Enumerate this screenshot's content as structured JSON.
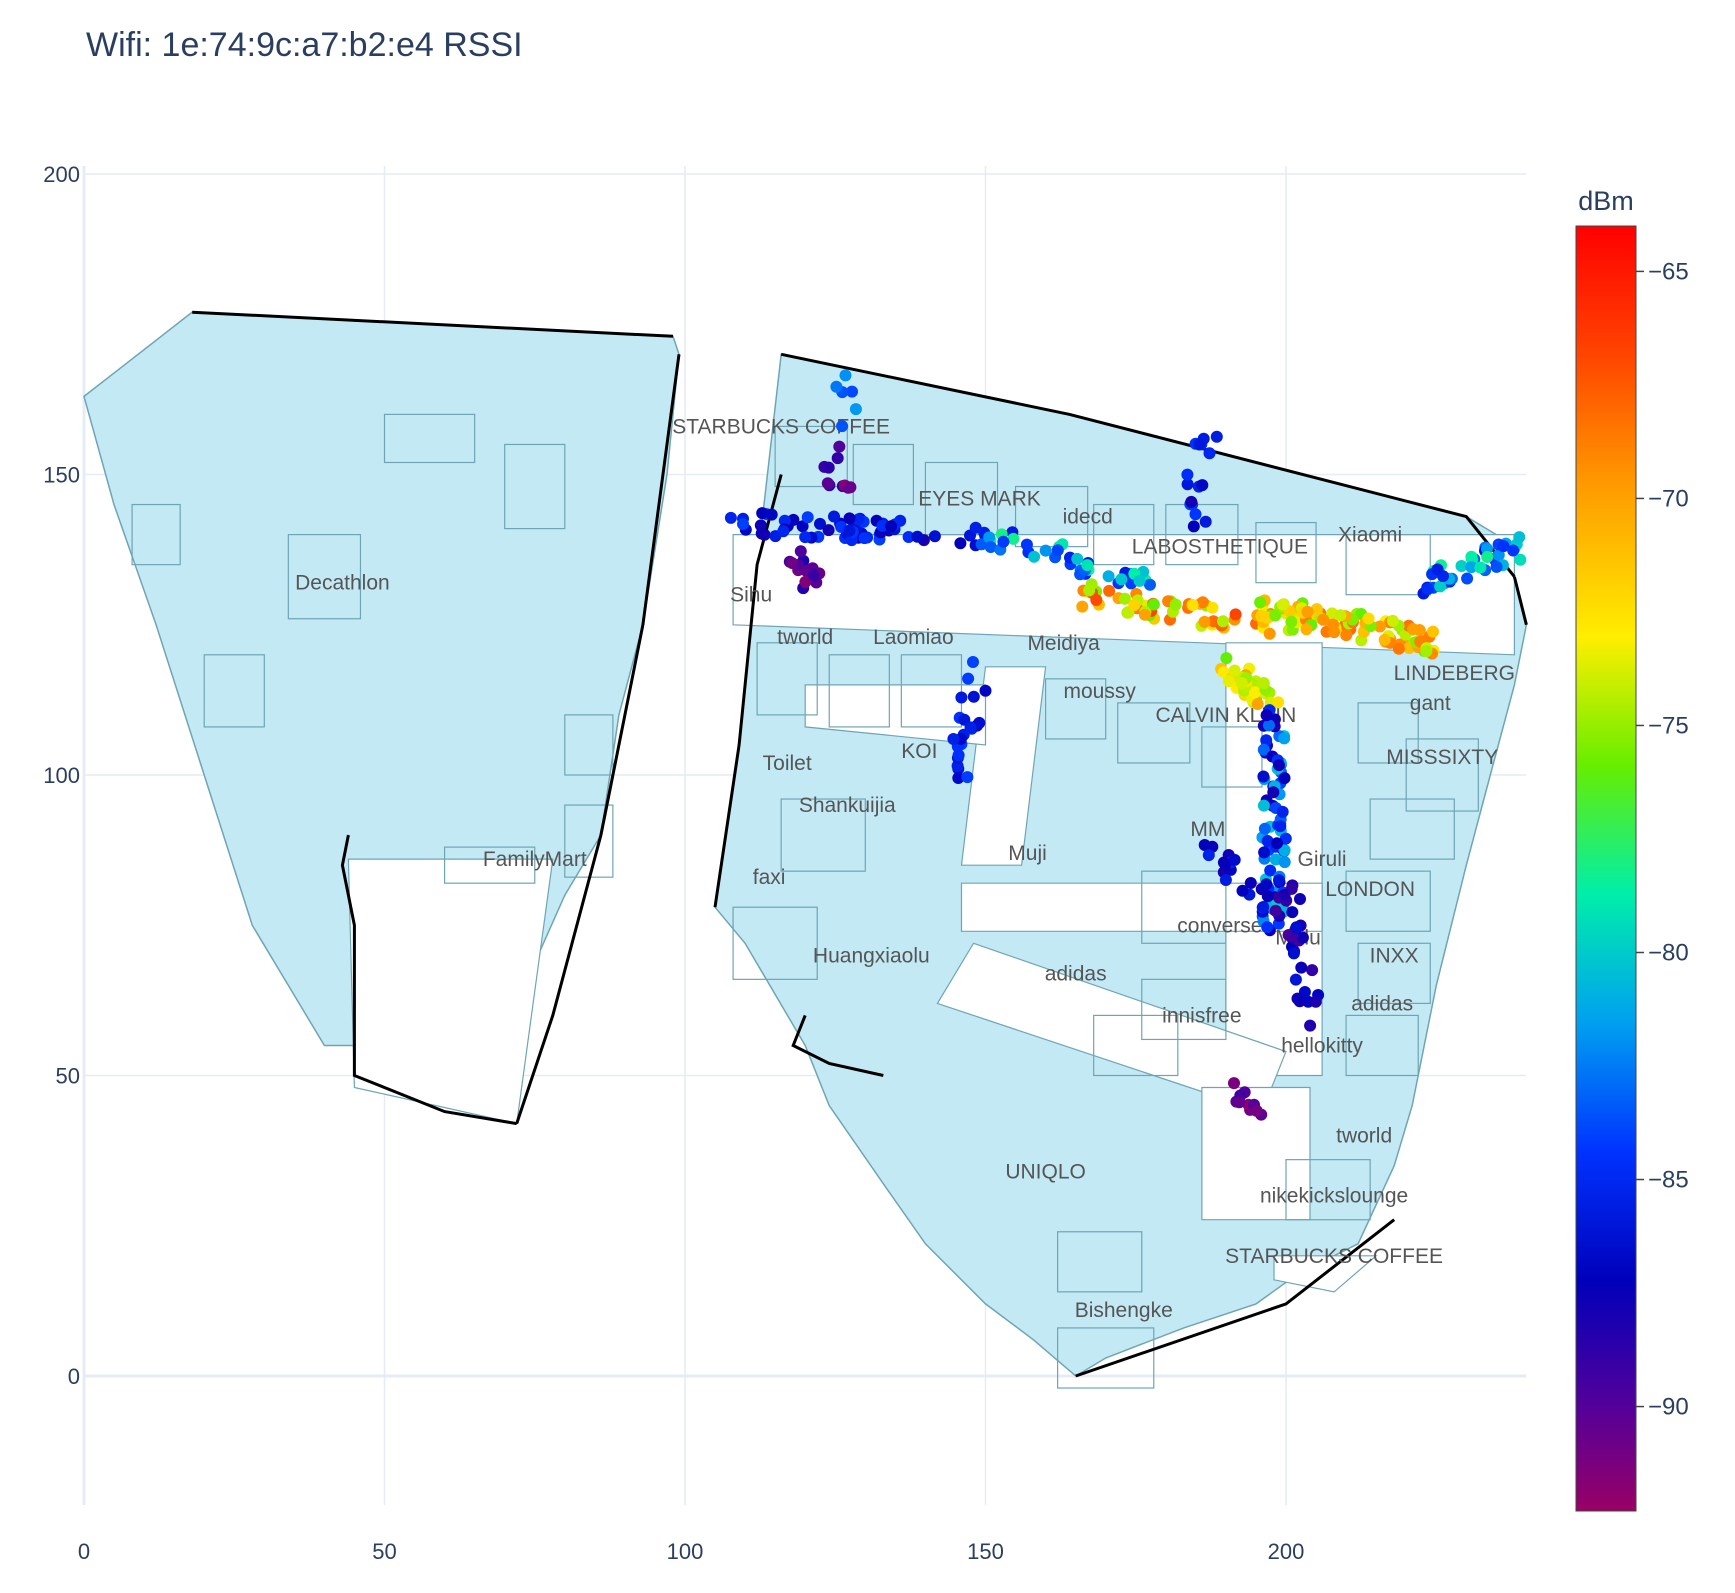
{
  "chart_data": {
    "type": "scatter",
    "title": "Wifi: 1e:74:9c:a7:b2:e4 RSSI",
    "xlabel": "",
    "ylabel": "",
    "xlim": [
      0,
      240
    ],
    "ylim": [
      -20,
      202
    ],
    "x_ticks": [
      0,
      50,
      100,
      150,
      200
    ],
    "y_ticks": [
      0,
      50,
      100,
      150,
      200
    ],
    "grid": true,
    "colorbar": {
      "title": "dBm",
      "range": [
        -92.3,
        -64
      ],
      "ticks": [
        -65,
        -70,
        -75,
        -80,
        -85,
        -90
      ],
      "colorscale": [
        "#800080",
        "#0000cc",
        "#0000ff",
        "#00aaee",
        "#00ee88",
        "#88ff00",
        "#ffee00",
        "#ffaa00",
        "#ff5500",
        "#ff0000"
      ]
    },
    "colors": {
      "floor_fill": "#c3e9f5",
      "floor_stroke": "#6fa5b3",
      "grid": "#e6ecf4",
      "outline": "#000000"
    },
    "store_labels": [
      {
        "text": "Decathlon",
        "x": 43,
        "y": 132
      },
      {
        "text": "FamilyMart",
        "x": 75,
        "y": 86
      },
      {
        "text": "STARBUCKS COFFEE",
        "x": 116,
        "y": 158
      },
      {
        "text": "EYES MARK",
        "x": 149,
        "y": 146
      },
      {
        "text": "idecd",
        "x": 167,
        "y": 143
      },
      {
        "text": "LABOSTHETIQUE",
        "x": 189,
        "y": 138
      },
      {
        "text": "Xiaomi",
        "x": 214,
        "y": 140
      },
      {
        "text": "Sihu",
        "x": 111,
        "y": 130
      },
      {
        "text": "tworld",
        "x": 120,
        "y": 123
      },
      {
        "text": "Laomiao",
        "x": 138,
        "y": 123
      },
      {
        "text": "Meidiya",
        "x": 163,
        "y": 122
      },
      {
        "text": "moussy",
        "x": 169,
        "y": 114
      },
      {
        "text": "CALVIN KLEIN",
        "x": 190,
        "y": 110
      },
      {
        "text": "LINDEBERG",
        "x": 228,
        "y": 117
      },
      {
        "text": "gant",
        "x": 224,
        "y": 112
      },
      {
        "text": "KOI",
        "x": 139,
        "y": 104
      },
      {
        "text": "Toilet",
        "x": 117,
        "y": 102
      },
      {
        "text": "MISSSIXTY",
        "x": 226,
        "y": 103
      },
      {
        "text": "Shankuijia",
        "x": 127,
        "y": 95
      },
      {
        "text": "MM",
        "x": 187,
        "y": 91
      },
      {
        "text": "Muji",
        "x": 157,
        "y": 87
      },
      {
        "text": "Giruli",
        "x": 206,
        "y": 86
      },
      {
        "text": "faxi",
        "x": 114,
        "y": 83
      },
      {
        "text": "LONDON",
        "x": 214,
        "y": 81
      },
      {
        "text": "converse",
        "x": 189,
        "y": 75
      },
      {
        "text": "Mulu",
        "x": 202,
        "y": 73
      },
      {
        "text": "INXX",
        "x": 218,
        "y": 70
      },
      {
        "text": "Huangxiaolu",
        "x": 131,
        "y": 70
      },
      {
        "text": "adidas",
        "x": 165,
        "y": 67
      },
      {
        "text": "adidas",
        "x": 216,
        "y": 62
      },
      {
        "text": "innisfree",
        "x": 186,
        "y": 60
      },
      {
        "text": "hellokitty",
        "x": 206,
        "y": 55
      },
      {
        "text": "tworld",
        "x": 213,
        "y": 40
      },
      {
        "text": "UNIQLO",
        "x": 160,
        "y": 34
      },
      {
        "text": "nikekickslounge",
        "x": 208,
        "y": 30
      },
      {
        "text": "STARBUCKS COFFEE",
        "x": 208,
        "y": 20
      },
      {
        "text": "Bishengke",
        "x": 173,
        "y": 11
      }
    ]
  }
}
